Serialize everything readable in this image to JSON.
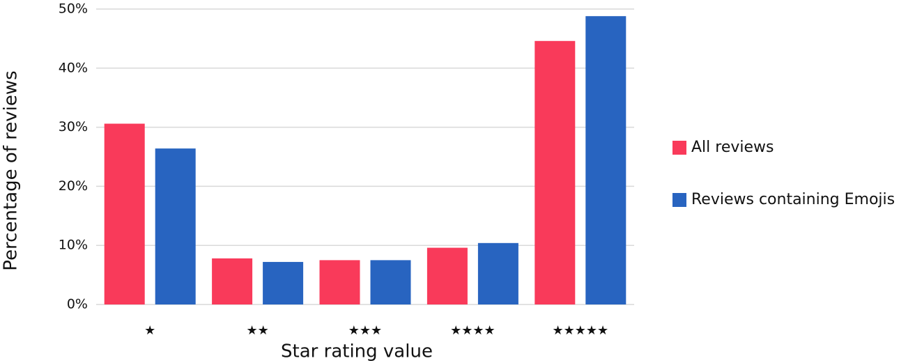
{
  "chart_data": {
    "type": "bar",
    "x_label": "Star rating value",
    "y_label": "Percentage of reviews",
    "categories": [
      "★",
      "★★",
      "★★★",
      "★★★★",
      "★★★★★"
    ],
    "series": [
      {
        "name": "All reviews",
        "color": "#f93a5a",
        "values": [
          30.6,
          7.8,
          7.5,
          9.6,
          44.6
        ]
      },
      {
        "name": "Reviews containing Emojis",
        "color": "#2864c0",
        "values": [
          26.4,
          7.2,
          7.5,
          10.4,
          48.8
        ]
      }
    ],
    "ylim": [
      0,
      50
    ],
    "yticks": [
      {
        "value": 0,
        "label": "0%"
      },
      {
        "value": 10,
        "label": "10%"
      },
      {
        "value": 20,
        "label": "20%"
      },
      {
        "value": 30,
        "label": "30%"
      },
      {
        "value": 40,
        "label": "40%"
      },
      {
        "value": 50,
        "label": "50%"
      }
    ],
    "grid": true,
    "legend": "right"
  }
}
